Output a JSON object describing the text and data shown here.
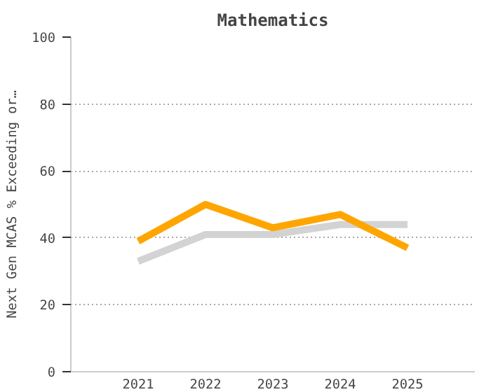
{
  "chart_data": {
    "type": "line",
    "title": "Mathematics",
    "ylabel": "Next Gen MCAS % Exceeding or…",
    "categories": [
      "2021",
      "2022",
      "2023",
      "2024",
      "2025"
    ],
    "series": [
      {
        "color": "#d3d3d3",
        "values": [
          33,
          41,
          41,
          44,
          44
        ]
      },
      {
        "color": "#ffa500",
        "values": [
          39,
          50,
          43,
          47,
          37
        ]
      }
    ],
    "ylim": [
      0,
      100
    ],
    "yticks": [
      0,
      20,
      40,
      60,
      80,
      100
    ],
    "grid": "y",
    "line_style": "solid",
    "marker": "none"
  }
}
